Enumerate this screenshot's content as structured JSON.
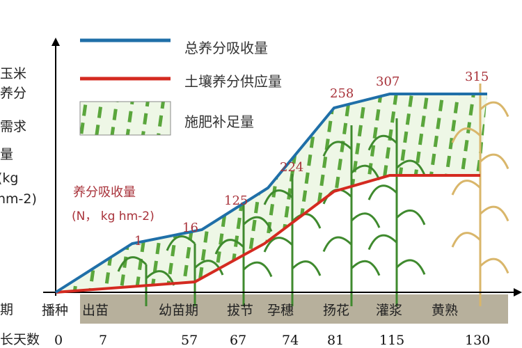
{
  "chart_data": {
    "type": "line",
    "ylabel": [
      "玉米",
      "养分",
      "需求",
      "量",
      "(kg",
      "hm-2)"
    ],
    "annotation_title": "养分吸收量",
    "annotation_unit": "(N， kg hm-2)",
    "row_label_stage": "期",
    "row_label_days": "长天数",
    "stages": [
      "播种",
      "出苗",
      "幼苗期",
      "拔节",
      "孕穗",
      "扬花",
      "灌浆",
      "黄熟"
    ],
    "days": [
      "0",
      "7",
      "57",
      "67",
      "74",
      "81",
      "115",
      "130"
    ],
    "series": [
      {
        "name": "总养分吸收量",
        "color": "#1f6fa8",
        "labels": [
          "1",
          "16",
          "125",
          "224",
          "258",
          "307",
          "315"
        ]
      },
      {
        "name": "土壤养分供应量",
        "color": "#d42a20"
      },
      {
        "name": "施肥补足量",
        "color": "#5aa63c"
      }
    ],
    "colors": {
      "label_text": "#a8323a",
      "ground": "#b7b09c",
      "corn": "#3f8a2e"
    }
  }
}
